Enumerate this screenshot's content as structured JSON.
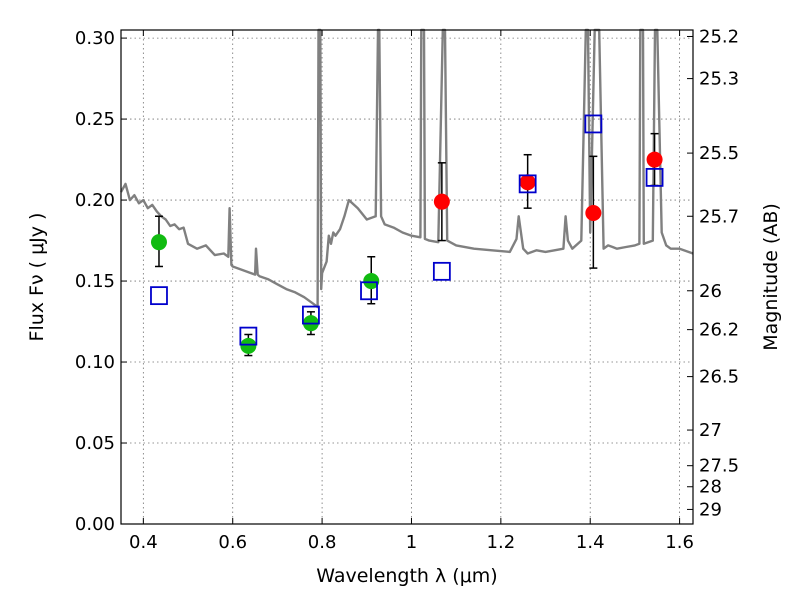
{
  "chart_data": {
    "type": "scatter",
    "xlabel": "Wavelength  λ (μm)",
    "ylabel": "Flux  Fν  ( μJy )",
    "y2label": "Magnitude (AB)",
    "xlim": [
      0.35,
      1.63
    ],
    "ylim": [
      0.0,
      0.305
    ],
    "grid": true,
    "x_ticks": [
      0.4,
      0.6,
      0.8,
      1.0,
      1.2,
      1.4,
      1.6
    ],
    "x_tick_labels": [
      "0.4",
      "0.6",
      "0.8",
      "1",
      "1.2",
      "1.4",
      "1.6"
    ],
    "y_ticks": [
      0.0,
      0.05,
      0.1,
      0.15,
      0.2,
      0.25,
      0.3
    ],
    "y_tick_labels": [
      "0.00",
      "0.05",
      "0.10",
      "0.15",
      "0.20",
      "0.25",
      "0.30"
    ],
    "y2_ticks": [
      {
        "label": "25.2",
        "flux": 0.301
      },
      {
        "label": "25.3",
        "flux": 0.275
      },
      {
        "label": "25.5",
        "flux": 0.229
      },
      {
        "label": "25.7",
        "flux": 0.19
      },
      {
        "label": "26",
        "flux": 0.144
      },
      {
        "label": "26.2",
        "flux": 0.12
      },
      {
        "label": "26.5",
        "flux": 0.091
      },
      {
        "label": "27",
        "flux": 0.058
      },
      {
        "label": "27.5",
        "flux": 0.036
      },
      {
        "label": "28",
        "flux": 0.023
      },
      {
        "label": "29",
        "flux": 0.009
      }
    ],
    "colors": {
      "model": "#808080",
      "green": "#11bb11",
      "red": "#ff0000",
      "box": "#0000cc",
      "errorbar": "#000000"
    },
    "series": [
      {
        "marker": "line",
        "color": "#808080",
        "x": [
          0.35,
          0.36,
          0.37,
          0.38,
          0.39,
          0.4,
          0.41,
          0.42,
          0.43,
          0.44,
          0.45,
          0.46,
          0.47,
          0.48,
          0.49,
          0.5,
          0.52,
          0.54,
          0.56,
          0.58,
          0.59,
          0.593,
          0.597,
          0.6,
          0.62,
          0.64,
          0.65,
          0.652,
          0.656,
          0.66,
          0.68,
          0.7,
          0.72,
          0.74,
          0.76,
          0.78,
          0.79,
          0.792,
          0.794,
          0.796,
          0.798,
          0.8,
          0.81,
          0.815,
          0.82,
          0.825,
          0.83,
          0.84,
          0.85,
          0.86,
          0.88,
          0.9,
          0.92,
          0.925,
          0.928,
          0.932,
          0.94,
          0.96,
          0.98,
          1.0,
          1.02,
          1.022,
          1.028,
          1.03,
          1.04,
          1.06,
          1.07,
          1.075,
          1.08,
          1.1,
          1.14,
          1.18,
          1.22,
          1.235,
          1.24,
          1.25,
          1.26,
          1.28,
          1.3,
          1.32,
          1.34,
          1.345,
          1.35,
          1.36,
          1.38,
          1.39,
          1.395,
          1.4,
          1.41,
          1.42,
          1.43,
          1.44,
          1.45,
          1.46,
          1.48,
          1.5,
          1.51,
          1.512,
          1.518,
          1.52,
          1.54,
          1.545,
          1.55,
          1.56,
          1.57,
          1.58,
          1.6,
          1.63
        ],
        "y": [
          0.205,
          0.21,
          0.2,
          0.203,
          0.198,
          0.2,
          0.195,
          0.197,
          0.193,
          0.19,
          0.188,
          0.184,
          0.185,
          0.182,
          0.183,
          0.173,
          0.17,
          0.172,
          0.166,
          0.167,
          0.165,
          0.195,
          0.16,
          0.159,
          0.157,
          0.155,
          0.154,
          0.17,
          0.154,
          0.153,
          0.151,
          0.148,
          0.145,
          0.143,
          0.14,
          0.136,
          0.134,
          0.305,
          0.305,
          0.305,
          0.145,
          0.155,
          0.162,
          0.178,
          0.173,
          0.18,
          0.178,
          0.182,
          0.19,
          0.2,
          0.195,
          0.188,
          0.19,
          0.305,
          0.305,
          0.19,
          0.185,
          0.183,
          0.18,
          0.178,
          0.177,
          0.305,
          0.305,
          0.176,
          0.175,
          0.174,
          0.305,
          0.305,
          0.175,
          0.172,
          0.17,
          0.169,
          0.168,
          0.176,
          0.19,
          0.17,
          0.167,
          0.169,
          0.168,
          0.169,
          0.17,
          0.19,
          0.175,
          0.17,
          0.175,
          0.305,
          0.305,
          0.18,
          0.305,
          0.305,
          0.17,
          0.172,
          0.171,
          0.17,
          0.171,
          0.172,
          0.173,
          0.305,
          0.305,
          0.173,
          0.175,
          0.305,
          0.305,
          0.18,
          0.172,
          0.17,
          0.17,
          0.167
        ]
      },
      {
        "marker": "circle",
        "color": "#11bb11",
        "x": [
          0.435,
          0.635,
          0.775,
          0.91
        ],
        "y": [
          0.174,
          0.11,
          0.124,
          0.15
        ],
        "yerr_low": [
          0.159,
          0.104,
          0.117,
          0.136
        ],
        "yerr_high": [
          0.19,
          0.117,
          0.131,
          0.165
        ]
      },
      {
        "marker": "circle",
        "color": "#ff0000",
        "x": [
          1.068,
          1.26,
          1.407,
          1.544
        ],
        "y": [
          0.199,
          0.211,
          0.192,
          0.225
        ],
        "yerr_low": [
          0.175,
          0.195,
          0.158,
          0.209
        ],
        "yerr_high": [
          0.223,
          0.228,
          0.227,
          0.241
        ]
      },
      {
        "marker": "square",
        "color": "#0000cc",
        "x": [
          0.435,
          0.635,
          0.775,
          0.905,
          1.068,
          1.26,
          1.407,
          1.544
        ],
        "y": [
          0.141,
          0.116,
          0.129,
          0.144,
          0.156,
          0.21,
          0.247,
          0.214
        ]
      }
    ]
  }
}
